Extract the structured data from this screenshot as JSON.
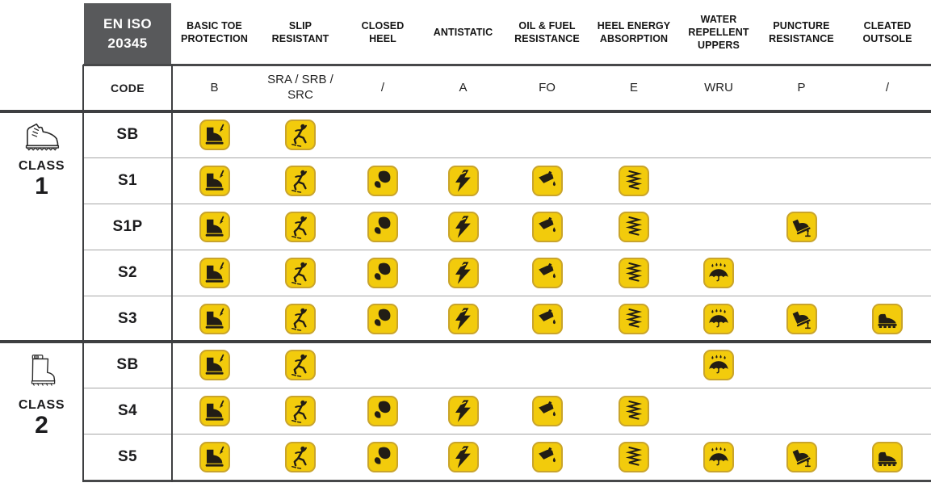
{
  "header": {
    "standard_line1": "EN ISO",
    "standard_line2": "20345",
    "code_label": "CODE",
    "columns": [
      {
        "id": "toe",
        "label": "BASIC TOE PROTECTION",
        "code": "B",
        "icon": "toe-protection-icon"
      },
      {
        "id": "slip",
        "label": "SLIP RESISTANT",
        "code": "SRA / SRB / SRC",
        "icon": "slip-resistant-icon"
      },
      {
        "id": "heel_closed",
        "label": "CLOSED HEEL",
        "code": "/",
        "icon": "closed-heel-icon"
      },
      {
        "id": "antistatic",
        "label": "ANTISTATIC",
        "code": "A",
        "icon": "antistatic-icon"
      },
      {
        "id": "oil",
        "label": "OIL & FUEL RESISTANCE",
        "code": "FO",
        "icon": "oil-fuel-resistance-icon"
      },
      {
        "id": "energy",
        "label": "HEEL ENERGY ABSORPTION",
        "code": "E",
        "icon": "heel-energy-absorption-icon"
      },
      {
        "id": "wru",
        "label": "WATER REPELLENT UPPERS",
        "code": "WRU",
        "icon": "water-repellent-icon"
      },
      {
        "id": "puncture",
        "label": "PUNCTURE RESISTANCE",
        "code": "P",
        "icon": "puncture-resistance-icon"
      },
      {
        "id": "cleated",
        "label": "CLEATED OUTSOLE",
        "code": "/",
        "icon": "cleated-outsole-icon"
      }
    ]
  },
  "classes": [
    {
      "label": "CLASS",
      "number": "1",
      "icon": "leather-boot-icon",
      "rows": [
        {
          "code": "SB",
          "features": [
            "toe",
            "slip"
          ]
        },
        {
          "code": "S1",
          "features": [
            "toe",
            "slip",
            "heel_closed",
            "antistatic",
            "oil",
            "energy"
          ]
        },
        {
          "code": "S1P",
          "features": [
            "toe",
            "slip",
            "heel_closed",
            "antistatic",
            "oil",
            "energy",
            "puncture"
          ]
        },
        {
          "code": "S2",
          "features": [
            "toe",
            "slip",
            "heel_closed",
            "antistatic",
            "oil",
            "energy",
            "wru"
          ]
        },
        {
          "code": "S3",
          "features": [
            "toe",
            "slip",
            "heel_closed",
            "antistatic",
            "oil",
            "energy",
            "wru",
            "puncture",
            "cleated"
          ]
        }
      ]
    },
    {
      "label": "CLASS",
      "number": "2",
      "icon": "rubber-boot-icon",
      "rows": [
        {
          "code": "SB",
          "features": [
            "toe",
            "slip",
            "wru"
          ]
        },
        {
          "code": "S4",
          "features": [
            "toe",
            "slip",
            "heel_closed",
            "antistatic",
            "oil",
            "energy"
          ]
        },
        {
          "code": "S5",
          "features": [
            "toe",
            "slip",
            "heel_closed",
            "antistatic",
            "oil",
            "energy",
            "wru",
            "puncture",
            "cleated"
          ]
        }
      ]
    }
  ],
  "colors": {
    "badge_yellow": "#F2CB0C",
    "badge_border": "#C9A42B",
    "pictogram_black": "#221D15",
    "standard_header_bg": "#58595B",
    "standard_header_text": "#FFFFFF",
    "section_line": "#47484A",
    "row_separator": "#A6A6A6",
    "column_border": "#3E3F41"
  }
}
